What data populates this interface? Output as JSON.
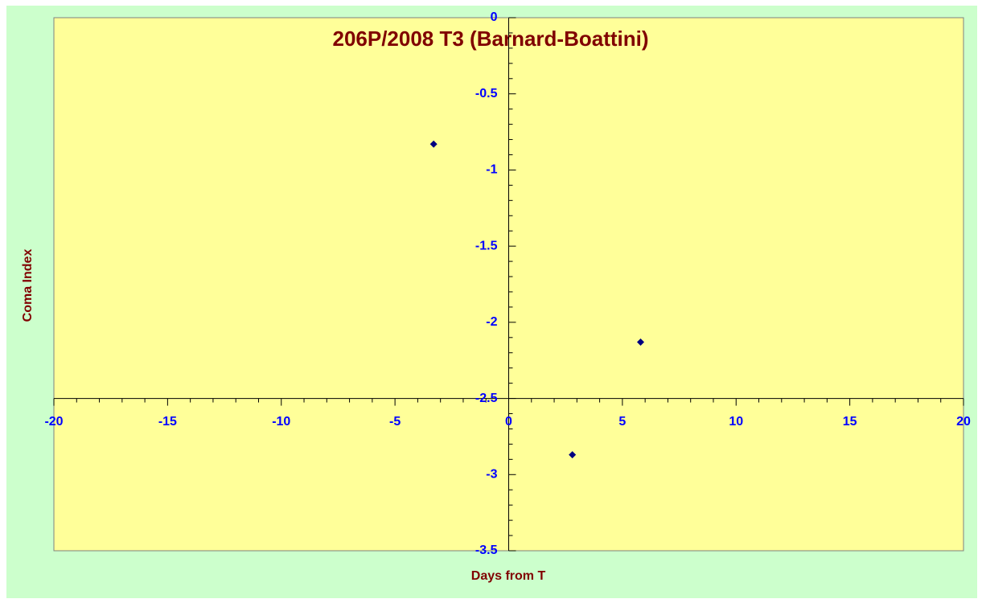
{
  "chart_data": {
    "type": "scatter",
    "title": "206P/2008 T3 (Barnard-Boattini)",
    "x_label": "Days from T",
    "y_label": "Coma Index",
    "x": [
      -3.3,
      5.8,
      2.8
    ],
    "values": [
      -0.83,
      -2.13,
      -2.87
    ],
    "color": "#000080",
    "xlim": [
      -20,
      20
    ],
    "xticks": [
      -20,
      -15,
      -10,
      -5,
      0,
      5,
      10,
      15,
      20
    ],
    "ylim": [
      -3.5,
      0
    ],
    "yticks": [
      0,
      -0.5,
      -1,
      -1.5,
      -2,
      -2.5,
      -3,
      -3.5
    ],
    "x_axis_at": -2.5,
    "y_axis_at": 0,
    "grid": false
  }
}
